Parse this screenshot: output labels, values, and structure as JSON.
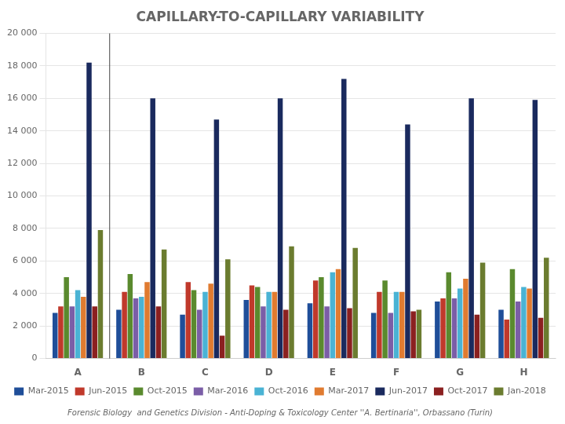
{
  "chart_data": {
    "type": "bar",
    "title": "CAPILLARY-TO-CAPILLARY VARIABILITY",
    "annotations": [
      "Forensic Biology  and Genetics Division - Anti-Doping & Toxicology Center ''A. Bertinaria'', Orbassano (Turin)"
    ],
    "categories": [
      "A",
      "B",
      "C",
      "D",
      "E",
      "F",
      "G",
      "H"
    ],
    "series": [
      {
        "name": "Mar-2015",
        "color": "#1f4e99",
        "values": [
          2800,
          3000,
          2700,
          3600,
          3400,
          2800,
          3500,
          3000
        ]
      },
      {
        "name": "Jun-2015",
        "color": "#c0392b",
        "values": [
          3200,
          4100,
          4700,
          4500,
          4800,
          4100,
          3700,
          2400
        ]
      },
      {
        "name": "Oct-2015",
        "color": "#5a8a2e",
        "values": [
          5000,
          5200,
          4200,
          4400,
          5000,
          4800,
          5300,
          5500
        ]
      },
      {
        "name": "Mar-2016",
        "color": "#7b5ea7",
        "values": [
          3200,
          3700,
          3000,
          3200,
          3200,
          2800,
          3700,
          3500
        ]
      },
      {
        "name": "Oct-2016",
        "color": "#4ab3d4",
        "values": [
          4200,
          3800,
          4100,
          4100,
          5300,
          4100,
          4300,
          4400
        ]
      },
      {
        "name": "Mar-2017",
        "color": "#e07b30",
        "values": [
          3800,
          4700,
          4600,
          4100,
          5500,
          4100,
          4900,
          4300
        ]
      },
      {
        "name": "Jun-2017",
        "color": "#1a2a5e",
        "values": [
          18200,
          16000,
          14700,
          16000,
          17200,
          14400,
          16000,
          15900
        ]
      },
      {
        "name": "Oct-2017",
        "color": "#8b2020",
        "values": [
          3200,
          3200,
          1400,
          3000,
          3100,
          2900,
          2700,
          2500
        ]
      },
      {
        "name": "Jan-2018",
        "color": "#6b7c2f",
        "values": [
          7900,
          6700,
          6100,
          6900,
          6800,
          3000,
          5900,
          6200
        ]
      }
    ],
    "ylim": [
      0,
      20000
    ],
    "yticks": [
      0,
      {
        "value": 2000,
        "label": "2 000"
      },
      {
        "value": 4000,
        "label": "4 000"
      },
      {
        "value": 6000,
        "label": "6 000"
      },
      {
        "value": 8000,
        "label": "8 000"
      },
      {
        "value": 10000,
        "label": "10 000"
      },
      {
        "value": 12000,
        "label": "12 000"
      },
      {
        "value": 14000,
        "label": "14 000"
      },
      {
        "value": 16000,
        "label": "16 000"
      },
      {
        "value": 18000,
        "label": "18 000"
      },
      {
        "value": 20000,
        "label": "20 000"
      }
    ],
    "grid": true,
    "legend": "bottom"
  }
}
